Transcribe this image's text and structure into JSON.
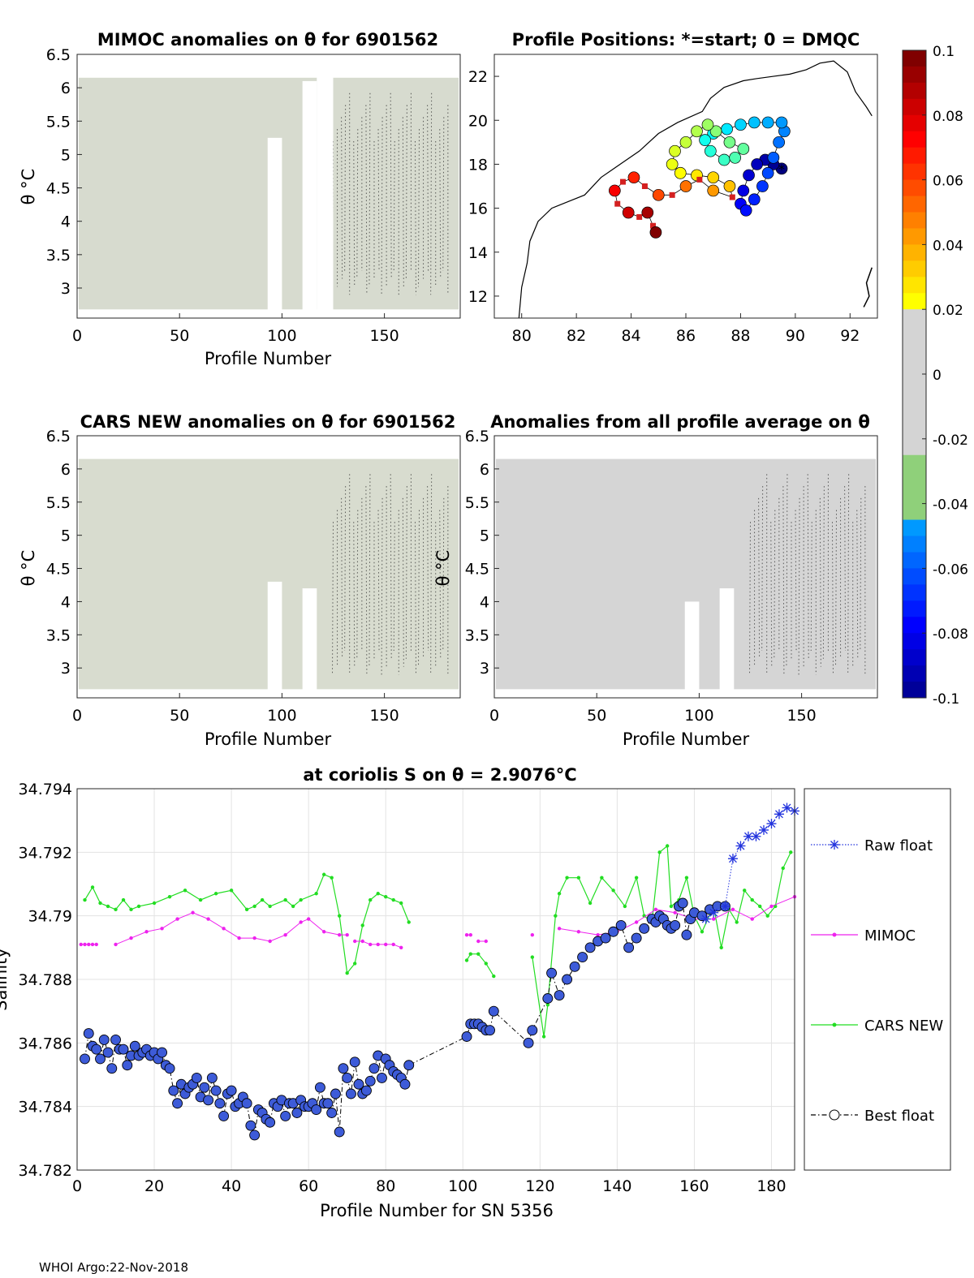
{
  "footer": "WHOI Argo:22-Nov-2018",
  "colorbar": {
    "ticks": [
      "0.1",
      "0.08",
      "0.06",
      "0.04",
      "0.02",
      "0",
      "-0.02",
      "-0.04",
      "-0.06",
      "-0.08",
      "-0.1"
    ],
    "range": [
      -0.1,
      0.1
    ],
    "colormap": "jet"
  },
  "chart_data": [
    {
      "id": "mimoc",
      "type": "heatmap",
      "title": "MIMOC anomalies on θ  for 6901562",
      "xlabel": "Profile Number",
      "ylabel": "θ °C",
      "xlim": [
        0,
        187
      ],
      "ylim": [
        2.55,
        6.5
      ],
      "xticks": [
        "0",
        "50",
        "100",
        "150"
      ],
      "yticks": [
        "6.5",
        "6",
        "5.5",
        "5",
        "4.5",
        "4",
        "3.5",
        "3"
      ],
      "fill_color": "#d7dbcf",
      "gaps": [
        [
          93,
          100,
          2.55,
          5.25
        ],
        [
          110,
          117,
          2.55,
          6.1
        ],
        [
          117,
          125,
          2.55,
          6.5
        ]
      ]
    },
    {
      "id": "positions",
      "type": "scatter",
      "title": "Profile Positions: *=start; 0 = DMQC",
      "xlim": [
        79,
        93
      ],
      "ylim": [
        11,
        23
      ],
      "xticks": [
        "80",
        "82",
        "84",
        "86",
        "88",
        "90",
        "92"
      ],
      "yticks": [
        "22",
        "20",
        "18",
        "16",
        "14",
        "12"
      ],
      "track": [
        [
          89.5,
          17.8
        ],
        [
          89.2,
          18.0
        ],
        [
          88.9,
          18.2
        ],
        [
          88.6,
          18.0
        ],
        [
          88.3,
          17.5
        ],
        [
          88.1,
          16.8
        ],
        [
          88.0,
          16.2
        ],
        [
          88.2,
          15.9
        ],
        [
          88.5,
          16.4
        ],
        [
          88.8,
          17.0
        ],
        [
          89.0,
          17.6
        ],
        [
          89.2,
          18.3
        ],
        [
          89.4,
          19.0
        ],
        [
          89.6,
          19.5
        ],
        [
          89.5,
          19.9
        ],
        [
          89.0,
          19.9
        ],
        [
          88.5,
          19.9
        ],
        [
          88.0,
          19.8
        ],
        [
          87.5,
          19.6
        ],
        [
          87.0,
          19.4
        ],
        [
          86.7,
          19.1
        ],
        [
          86.9,
          18.6
        ],
        [
          87.4,
          18.2
        ],
        [
          87.8,
          18.3
        ],
        [
          88.1,
          18.7
        ],
        [
          87.6,
          19.0
        ],
        [
          87.1,
          19.5
        ],
        [
          86.8,
          19.8
        ],
        [
          86.4,
          19.5
        ],
        [
          86.0,
          19.0
        ],
        [
          85.6,
          18.6
        ],
        [
          85.5,
          18.0
        ],
        [
          85.8,
          17.6
        ],
        [
          86.4,
          17.5
        ],
        [
          87.0,
          17.4
        ],
        [
          87.6,
          17.0
        ],
        [
          87.7,
          16.5
        ],
        [
          87.0,
          16.8
        ],
        [
          86.5,
          17.3
        ],
        [
          86.0,
          17.0
        ],
        [
          85.5,
          16.6
        ],
        [
          85.0,
          16.6
        ],
        [
          84.5,
          17.0
        ],
        [
          84.1,
          17.4
        ],
        [
          83.7,
          17.2
        ],
        [
          83.4,
          16.8
        ],
        [
          83.5,
          16.2
        ],
        [
          83.9,
          15.8
        ],
        [
          84.3,
          15.6
        ],
        [
          84.6,
          15.8
        ],
        [
          84.8,
          15.2
        ],
        [
          84.9,
          14.9
        ]
      ],
      "start": [
        89.5,
        17.8
      ]
    },
    {
      "id": "cars",
      "type": "heatmap",
      "title": "CARS NEW anomalies on θ for 6901562",
      "xlabel": "Profile Number",
      "ylabel": "θ °C",
      "xlim": [
        0,
        187
      ],
      "ylim": [
        2.55,
        6.5
      ],
      "xticks": [
        "0",
        "50",
        "100",
        "150"
      ],
      "yticks": [
        "6.5",
        "6",
        "5.5",
        "5",
        "4.5",
        "4",
        "3.5",
        "3"
      ],
      "fill_color": "#d8dccf",
      "gaps": [
        [
          93,
          100,
          2.55,
          4.3
        ],
        [
          110,
          117,
          2.55,
          4.2
        ]
      ]
    },
    {
      "id": "allavg",
      "type": "heatmap",
      "title": "Anomalies from all profile average on θ",
      "xlabel": "Profile Number",
      "ylabel": "θ °C",
      "xlim": [
        0,
        187
      ],
      "ylim": [
        2.55,
        6.5
      ],
      "xticks": [
        "0",
        "50",
        "100",
        "150"
      ],
      "yticks": [
        "6.5",
        "6",
        "5.5",
        "5",
        "4.5",
        "4",
        "3.5",
        "3"
      ],
      "fill_color": "#d5d5d5",
      "gaps": [
        [
          93,
          100,
          2.55,
          4.0
        ],
        [
          110,
          117,
          2.55,
          4.2
        ]
      ]
    },
    {
      "id": "salinity",
      "type": "line",
      "title": "at coriolis S on θ = 2.9076°C",
      "xlabel": "Profile Number for SN 5356",
      "ylabel": "Salinity",
      "xlim": [
        0,
        186
      ],
      "ylim": [
        34.782,
        34.794
      ],
      "xticks": [
        "0",
        "20",
        "40",
        "60",
        "80",
        "100",
        "120",
        "140",
        "160",
        "180"
      ],
      "yticks": [
        "34.794",
        "34.792",
        "34.79",
        "34.788",
        "34.786",
        "34.784",
        "34.782"
      ],
      "legend": [
        "Raw float",
        "MIMOC",
        "CARS NEW",
        "Best float"
      ],
      "series": [
        {
          "name": "Raw float",
          "x": [
            163,
            165,
            168,
            170,
            172,
            174,
            176,
            178,
            180,
            182,
            184,
            186
          ],
          "y": [
            34.7899,
            34.7901,
            34.7903,
            34.7918,
            34.7922,
            34.7925,
            34.7925,
            34.7927,
            34.7929,
            34.7932,
            34.7934,
            34.7933
          ]
        },
        {
          "name": "MIMOC",
          "segments": [
            {
              "x": [
                1,
                2,
                3,
                4,
                5
              ],
              "y": [
                34.7891,
                34.7891,
                34.7891,
                34.7891,
                34.7891
              ]
            },
            {
              "x": [
                10,
                14,
                18,
                22,
                26,
                30,
                34,
                38,
                42,
                46,
                50,
                54,
                58,
                60,
                64,
                68,
                70
              ],
              "y": [
                34.7891,
                34.7893,
                34.7895,
                34.7896,
                34.7899,
                34.7901,
                34.7899,
                34.7896,
                34.7893,
                34.7893,
                34.7892,
                34.7894,
                34.7898,
                34.7899,
                34.7895,
                34.7894,
                34.7894
              ]
            },
            {
              "x": [
                72,
                74,
                76,
                78,
                80,
                82,
                84
              ],
              "y": [
                34.7892,
                34.7892,
                34.7891,
                34.7891,
                34.7891,
                34.7891,
                34.789
              ]
            },
            {
              "x": [
                101,
                102
              ],
              "y": [
                34.7894,
                34.7894
              ]
            },
            {
              "x": [
                104,
                106
              ],
              "y": [
                34.7892,
                34.7892
              ]
            },
            {
              "x": [
                118
              ],
              "y": [
                34.7894
              ]
            },
            {
              "x": [
                125,
                130,
                135,
                140,
                145,
                150,
                155,
                160,
                165,
                170,
                175,
                180,
                186
              ],
              "y": [
                34.7896,
                34.7895,
                34.7894,
                34.7895,
                34.7898,
                34.7902,
                34.7901,
                34.7899,
                34.7899,
                34.7902,
                34.7899,
                34.7903,
                34.7906
              ]
            }
          ]
        },
        {
          "name": "CARS NEW",
          "segments": [
            {
              "x": [
                2,
                4,
                6,
                8,
                10,
                12,
                14,
                16,
                20,
                24,
                28,
                32,
                36,
                40,
                44,
                46,
                48,
                50,
                54,
                56,
                58,
                62,
                64,
                66,
                68,
                70,
                72,
                74,
                76,
                78,
                80,
                82,
                84,
                86
              ],
              "y": [
                34.7905,
                34.7909,
                34.7904,
                34.7903,
                34.7902,
                34.7905,
                34.7902,
                34.7903,
                34.7904,
                34.7906,
                34.7908,
                34.7905,
                34.7907,
                34.7908,
                34.7902,
                34.7903,
                34.7905,
                34.7903,
                34.7905,
                34.7903,
                34.7905,
                34.7907,
                34.7913,
                34.7912,
                34.79,
                34.7882,
                34.7885,
                34.7897,
                34.7905,
                34.7907,
                34.7906,
                34.7905,
                34.7904,
                34.7898
              ]
            },
            {
              "x": [
                101,
                102,
                104,
                106,
                108
              ],
              "y": [
                34.7886,
                34.7888,
                34.7888,
                34.7885,
                34.7881
              ]
            },
            {
              "x": [
                118,
                121,
                122,
                124,
                125,
                127,
                130,
                133,
                136,
                139,
                142,
                145,
                147,
                149,
                151,
                153,
                154,
                156,
                158,
                160,
                162,
                165,
                167,
                169,
                171,
                173,
                175,
                177,
                179,
                181,
                183,
                185
              ],
              "y": [
                34.7887,
                34.7862,
                34.7872,
                34.79,
                34.7907,
                34.7912,
                34.7912,
                34.7904,
                34.7912,
                34.7908,
                34.7903,
                34.7912,
                34.79,
                34.7898,
                34.792,
                34.7922,
                34.7903,
                34.7905,
                34.7912,
                34.79,
                34.7895,
                34.7903,
                34.789,
                34.7902,
                34.7898,
                34.7908,
                34.7905,
                34.7903,
                34.79,
                34.7903,
                34.7915,
                34.792
              ]
            }
          ]
        },
        {
          "name": "Best float",
          "x": [
            2,
            3,
            4,
            5,
            6,
            7,
            8,
            9,
            10,
            11,
            12,
            13,
            14,
            15,
            16,
            17,
            18,
            19,
            20,
            21,
            22,
            23,
            24,
            25,
            26,
            27,
            28,
            29,
            30,
            31,
            32,
            33,
            34,
            35,
            36,
            37,
            38,
            39,
            40,
            41,
            42,
            43,
            44,
            45,
            46,
            47,
            48,
            49,
            50,
            51,
            52,
            53,
            54,
            55,
            56,
            57,
            58,
            59,
            60,
            61,
            62,
            63,
            64,
            65,
            66,
            67,
            68,
            69,
            70,
            71,
            72,
            73,
            74,
            75,
            76,
            77,
            78,
            79,
            80,
            81,
            82,
            83,
            84,
            85,
            86,
            101,
            102,
            103,
            104,
            105,
            106,
            107,
            108,
            117,
            118,
            122,
            123,
            125,
            127,
            129,
            131,
            133,
            135,
            137,
            139,
            141,
            143,
            145,
            147,
            149,
            150,
            151,
            152,
            153,
            154,
            155,
            156,
            157,
            158,
            159,
            160,
            162,
            164,
            166,
            168
          ],
          "y": [
            34.7855,
            34.7863,
            34.7859,
            34.7858,
            34.7855,
            34.7861,
            34.7857,
            34.7852,
            34.7861,
            34.7858,
            34.7858,
            34.7853,
            34.7856,
            34.7859,
            34.7856,
            34.7857,
            34.7858,
            34.7856,
            34.7857,
            34.7855,
            34.7857,
            34.7853,
            34.7852,
            34.7845,
            34.7841,
            34.7847,
            34.7844,
            34.7846,
            34.7847,
            34.7849,
            34.7843,
            34.7846,
            34.7842,
            34.7849,
            34.7845,
            34.7841,
            34.7837,
            34.7844,
            34.7845,
            34.784,
            34.7841,
            34.7843,
            34.7841,
            34.7834,
            34.7831,
            34.7839,
            34.7838,
            34.7836,
            34.7835,
            34.7841,
            34.784,
            34.7842,
            34.7837,
            34.7841,
            34.7841,
            34.7838,
            34.7842,
            34.784,
            34.784,
            34.7841,
            34.7839,
            34.7846,
            34.7841,
            34.7841,
            34.7838,
            34.7844,
            34.7832,
            34.7852,
            34.7849,
            34.7844,
            34.7854,
            34.7847,
            34.7844,
            34.7845,
            34.7848,
            34.7852,
            34.7856,
            34.7849,
            34.7855,
            34.7853,
            34.7851,
            34.785,
            34.7849,
            34.7847,
            34.7853,
            34.7862,
            34.7866,
            34.7866,
            34.7866,
            34.7865,
            34.7864,
            34.7864,
            34.787,
            34.786,
            34.7864,
            34.7874,
            34.7882,
            34.7875,
            34.788,
            34.7884,
            34.7887,
            34.789,
            34.7892,
            34.7893,
            34.7895,
            34.7897,
            34.789,
            34.7893,
            34.7896,
            34.7899,
            34.7898,
            34.79,
            34.7899,
            34.7897,
            34.7896,
            34.7897,
            34.7903,
            34.7904,
            34.7894,
            34.7899,
            34.7901,
            34.79,
            34.7902,
            34.7903,
            34.7903
          ]
        }
      ]
    }
  ]
}
